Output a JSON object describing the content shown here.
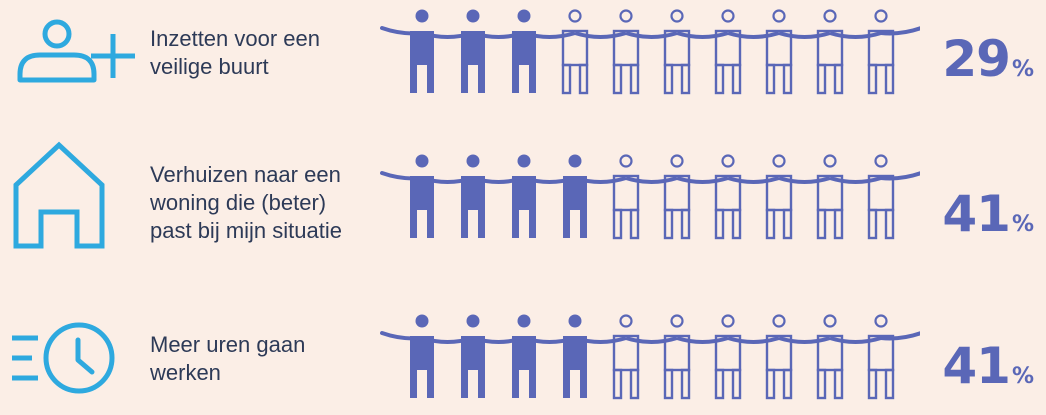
{
  "colors": {
    "background": "#fbeee6",
    "icon": "#2ea9df",
    "figure": "#5a67b7",
    "text": "#2d3a57"
  },
  "figures_per_row": 10,
  "chart_data": {
    "type": "pictogram",
    "unit": "%",
    "items": [
      {
        "label_lines": [
          "Inzetten voor een",
          "veilige buurt"
        ],
        "value": 29,
        "display": "29",
        "filled": 3,
        "icon": "user-plus-icon"
      },
      {
        "label_lines": [
          "Verhuizen naar een",
          "woning die (beter)",
          "past bij mijn situatie"
        ],
        "value": 41,
        "display": "41",
        "filled": 4,
        "icon": "house-icon"
      },
      {
        "label_lines": [
          "Meer uren gaan",
          "werken"
        ],
        "value": 41,
        "display": "41",
        "filled": 4,
        "icon": "clock-fast-icon"
      }
    ]
  }
}
